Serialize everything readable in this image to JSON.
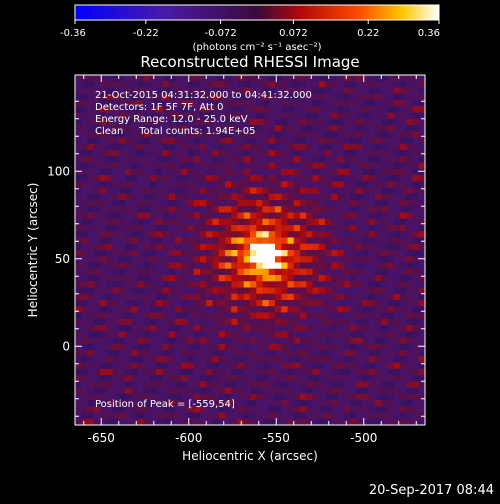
{
  "colorbar": {
    "ticks": [
      "-0.36",
      "-0.22",
      "-0.072",
      "0.072",
      "0.22",
      "0.36"
    ],
    "unit_label": "(photons cm⁻² s⁻¹ asec⁻²)",
    "range": [
      -0.36,
      0.36
    ],
    "colormap": "red-temperature (blue-purple-red-yellow-white)"
  },
  "chart_data": {
    "type": "heatmap",
    "title": "Reconstructed RHESSI Image",
    "xlabel": "Heliocentric X (arcsec)",
    "ylabel": "Heliocentric Y (arcsec)",
    "xlim": [
      -665,
      -465
    ],
    "ylim": [
      -45,
      155
    ],
    "x_ticks": [
      "-650",
      "-600",
      "-550",
      "-500"
    ],
    "y_ticks": [
      "0",
      "50",
      "100"
    ],
    "x_tick_values": [
      -650,
      -600,
      -550,
      -500
    ],
    "y_tick_values": [
      0,
      50,
      100
    ],
    "peak_position": [
      -559,
      54
    ],
    "info_lines": [
      "21-Oct-2015 04:31:32.000 to 04:41:32.000",
      "Detectors: 1F 5F 7F, Att 0",
      "Energy Range: 12.0 - 25.0 keV",
      "Clean     Total counts: 1.94E+05"
    ],
    "peak_label": "Position of Peak = [-559,54]"
  },
  "footer": {
    "timestamp": "20-Sep-2017 08:44"
  }
}
